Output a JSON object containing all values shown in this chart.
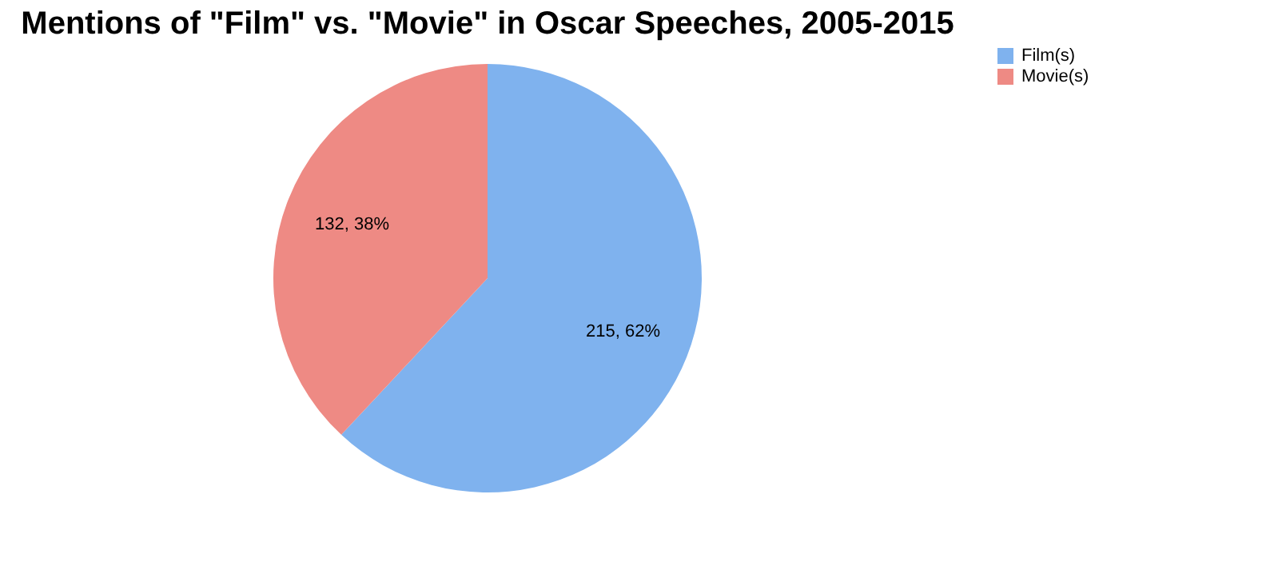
{
  "chart_data": {
    "type": "pie",
    "title": "Mentions of \"Film\" vs. \"Movie\" in Oscar Speeches, 2005-2015",
    "categories": [
      "Film(s)",
      "Movie(s)"
    ],
    "values": [
      215,
      132
    ],
    "colors": [
      "#7fb2ee",
      "#ee8a84"
    ],
    "value_labels": [
      "215, 62%",
      "132, 38%"
    ],
    "legend": "right"
  }
}
